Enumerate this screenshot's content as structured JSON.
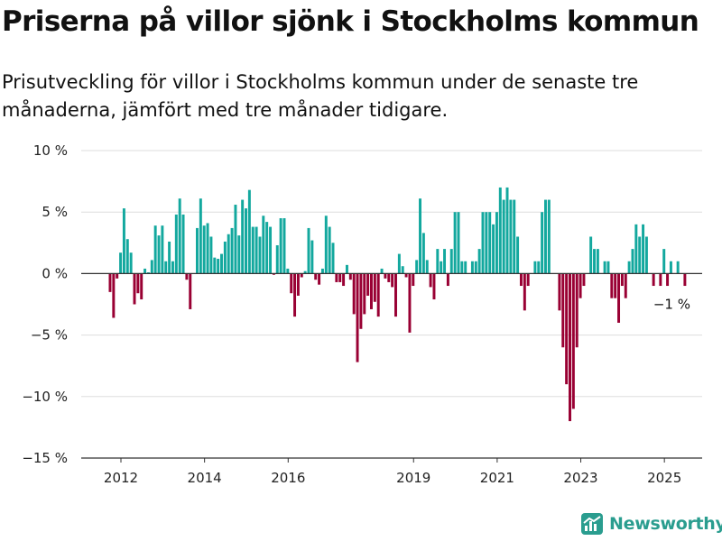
{
  "title": "Priserna på villor sjönk i Stockholms kommun",
  "subtitle": "Prisutveckling för villor i Stockholms kommun under de senaste tre månaderna, jämfört med tre månader tidigare.",
  "brand": "Newsworthy",
  "colors": {
    "positive": "#13a89e",
    "negative": "#990033",
    "grid": "#dddddd",
    "axis": "#333333",
    "brand": "#2a9d8f"
  },
  "chart_data": {
    "type": "bar",
    "title": "Priserna på villor sjönk i Stockholms kommun",
    "xlabel": "",
    "ylabel": "",
    "ylim": [
      -15,
      10
    ],
    "yticks": [
      10,
      5,
      0,
      -5,
      -10,
      -15
    ],
    "ytick_labels": [
      "10 %",
      "5 %",
      "0 %",
      "−5 %",
      "−10 %",
      "−15 %"
    ],
    "xticks": [
      2012,
      2014,
      2016,
      2019,
      2021,
      2023,
      2025
    ],
    "xtick_labels": [
      "2012",
      "2014",
      "2016",
      "2019",
      "2021",
      "2023",
      "2025"
    ],
    "grid": true,
    "end_label": "−1 %",
    "start": "2011-10",
    "values": [
      -1.5,
      -3.6,
      -0.4,
      1.7,
      5.3,
      2.8,
      1.7,
      -2.5,
      -1.6,
      -2.1,
      0.4,
      0.1,
      1.1,
      3.9,
      3.1,
      3.9,
      1.0,
      2.6,
      1.0,
      4.8,
      6.1,
      4.8,
      -0.5,
      -2.9,
      0,
      3.7,
      6.1,
      3.9,
      4.1,
      3.0,
      1.3,
      1.2,
      1.6,
      2.6,
      3.2,
      3.7,
      5.6,
      3.1,
      6.0,
      5.3,
      6.8,
      3.8,
      3.8,
      3.0,
      4.7,
      4.2,
      3.8,
      -0.1,
      2.3,
      4.5,
      4.5,
      0.4,
      -1.6,
      -3.5,
      -1.8,
      -0.3,
      0.2,
      3.7,
      2.7,
      -0.5,
      -0.9,
      0.4,
      4.7,
      3.8,
      2.5,
      -0.7,
      -0.7,
      -1.0,
      0.7,
      -0.5,
      -3.3,
      -7.2,
      -4.5,
      -3.3,
      -1.8,
      -2.9,
      -2.3,
      -3.5,
      0.4,
      -0.4,
      -0.7,
      -1.1,
      -3.5,
      1.6,
      0.6,
      -0.3,
      -4.8,
      -1.0,
      1.1,
      6.1,
      3.3,
      1.1,
      -1.1,
      -2.1,
      2.0,
      1.0,
      2.0,
      -1.0,
      2.0,
      5.0,
      5.0,
      1.0,
      1.0,
      0,
      1.0,
      1.0,
      2.0,
      5.0,
      5.0,
      5.0,
      4.0,
      5.0,
      7.0,
      6.0,
      7.0,
      6.0,
      6.0,
      3.0,
      -1.0,
      -3.0,
      -1.0,
      0,
      1.0,
      1.0,
      5.0,
      6.0,
      6.0,
      0,
      0,
      -3.0,
      -6.0,
      -9.0,
      -12.0,
      -11.0,
      -6.0,
      -2.0,
      -1.0,
      0,
      3.0,
      2.0,
      2.0,
      0,
      1.0,
      1.0,
      -2.0,
      -2.0,
      -4.0,
      -1.0,
      -2.0,
      1.0,
      2.0,
      4.0,
      3.0,
      4.0,
      3.0,
      0,
      -1.0,
      0,
      -1.0,
      2.0,
      -1.0,
      1.0,
      0,
      1.0,
      0,
      -1.0
    ]
  }
}
